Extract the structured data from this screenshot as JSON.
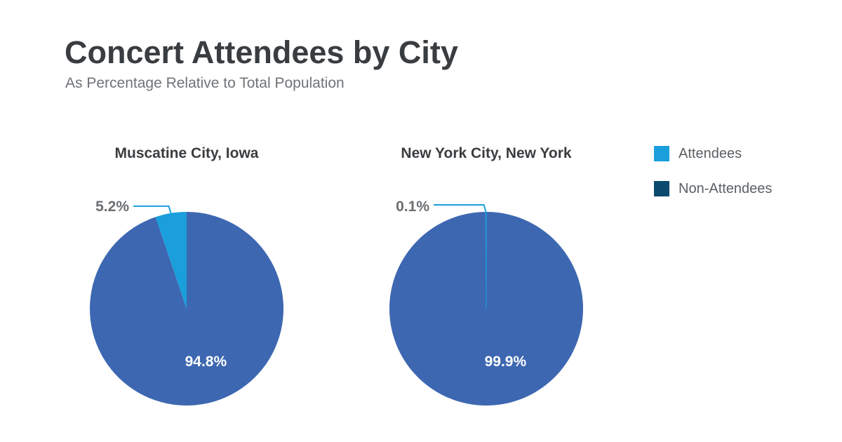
{
  "chart_data": [
    {
      "type": "pie",
      "title": "Muscatine City, Iowa",
      "categories": [
        "Attendees",
        "Non-Attendees"
      ],
      "values": [
        5.2,
        94.8
      ],
      "labels": [
        "5.2%",
        "94.8%"
      ]
    },
    {
      "type": "pie",
      "title": "New York City, New York",
      "categories": [
        "Attendees",
        "Non-Attendees"
      ],
      "values": [
        0.1,
        99.9
      ],
      "labels": [
        "0.1%",
        "99.9%"
      ]
    }
  ],
  "figure": {
    "title": "Concert Attendees by City",
    "subtitle": "As Percentage Relative to Total Population"
  },
  "legend": {
    "items": [
      {
        "label": "Attendees",
        "color": "#1a9fdc"
      },
      {
        "label": "Non-Attendees",
        "color": "#0b4a6e"
      }
    ]
  },
  "colors": {
    "attendees_slice": "#1a9fdc",
    "non_attendees_slice": "#3d67b1",
    "leader_line": "#1a9fdc",
    "outside_label": "#6a6e72",
    "inside_label": "#ffffff",
    "pie_title": "#3a3d40"
  }
}
